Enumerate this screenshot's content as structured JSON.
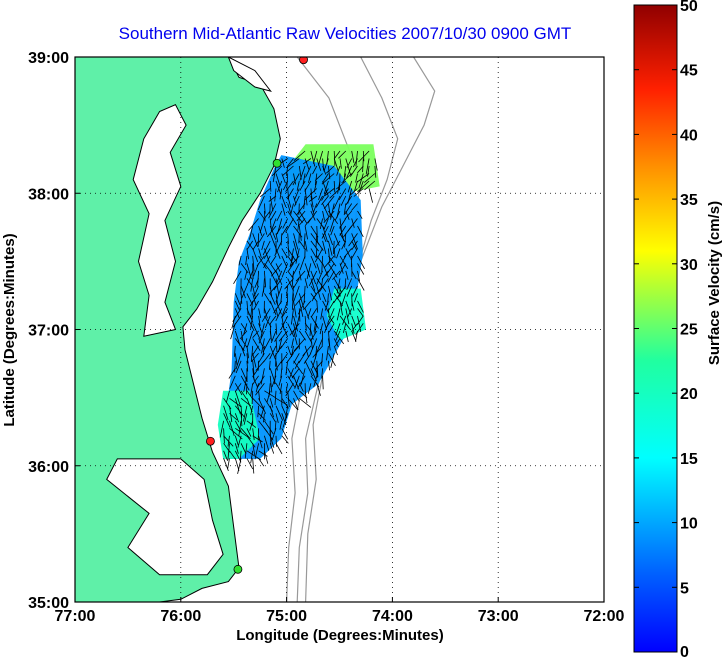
{
  "chart_data": {
    "type": "heatmap",
    "title": "Southern Mid-Atlantic Raw Velocities 2007/10/30 0900 GMT",
    "xlabel": "Longitude (Degrees:Minutes)",
    "ylabel": "Latitude (Degrees:Minutes)",
    "x_ticks": [
      "77:00",
      "76:00",
      "75:00",
      "74:00",
      "73:00",
      "72:00"
    ],
    "y_ticks": [
      "39:00",
      "38:00",
      "37:00",
      "36:00",
      "35:00"
    ],
    "xlim": [
      -77,
      -72
    ],
    "ylim": [
      35,
      39
    ],
    "grid": "dotted",
    "colorbar": {
      "label": "Surface Velocity (cm/s)",
      "ticks": [
        "0",
        "5",
        "10",
        "15",
        "20",
        "25",
        "30",
        "35",
        "40",
        "45",
        "50"
      ],
      "range": [
        0,
        50
      ],
      "colormap": "jet"
    },
    "land_color": "#5ff0a8",
    "coast_color": "#000000",
    "bathymetry_color": "#999999",
    "sites": [
      {
        "lon": -74.84,
        "lat": 38.98,
        "color": "#ff2020"
      },
      {
        "lon": -75.09,
        "lat": 38.22,
        "color": "#30e030"
      },
      {
        "lon": -75.72,
        "lat": 36.18,
        "color": "#ff2020"
      },
      {
        "lon": -75.46,
        "lat": 35.24,
        "color": "#30e030"
      }
    ],
    "velocity_regions": [
      {
        "name": "northern",
        "poly": [
          [
            -74.82,
            38.36
          ],
          [
            -74.18,
            38.36
          ],
          [
            -74.12,
            38.05
          ],
          [
            -74.45,
            38.0
          ],
          [
            -74.95,
            38.05
          ],
          [
            -74.98,
            38.2
          ]
        ],
        "speed": 26
      },
      {
        "name": "offshore-band",
        "poly": [
          [
            -75.05,
            38.28
          ],
          [
            -74.55,
            38.2
          ],
          [
            -74.3,
            37.95
          ],
          [
            -74.28,
            37.55
          ],
          [
            -74.35,
            37.2
          ],
          [
            -74.45,
            36.95
          ],
          [
            -74.7,
            36.6
          ],
          [
            -74.95,
            36.45
          ],
          [
            -75.05,
            36.2
          ],
          [
            -75.25,
            36.05
          ],
          [
            -75.55,
            36.05
          ],
          [
            -75.6,
            36.25
          ],
          [
            -75.52,
            36.7
          ],
          [
            -75.5,
            37.2
          ],
          [
            -75.45,
            37.5
          ],
          [
            -75.35,
            37.7
          ],
          [
            -75.25,
            37.95
          ],
          [
            -75.12,
            38.18
          ]
        ],
        "speed": 9
      },
      {
        "name": "southwest",
        "poly": [
          [
            -75.6,
            36.55
          ],
          [
            -75.35,
            36.55
          ],
          [
            -75.25,
            36.2
          ],
          [
            -75.45,
            36.05
          ],
          [
            -75.6,
            36.05
          ],
          [
            -75.65,
            36.3
          ]
        ],
        "speed": 20
      },
      {
        "name": "east-lobe",
        "poly": [
          [
            -74.55,
            37.3
          ],
          [
            -74.3,
            37.3
          ],
          [
            -74.25,
            37.0
          ],
          [
            -74.5,
            36.92
          ],
          [
            -74.62,
            37.1
          ]
        ],
        "speed": 19
      }
    ]
  }
}
